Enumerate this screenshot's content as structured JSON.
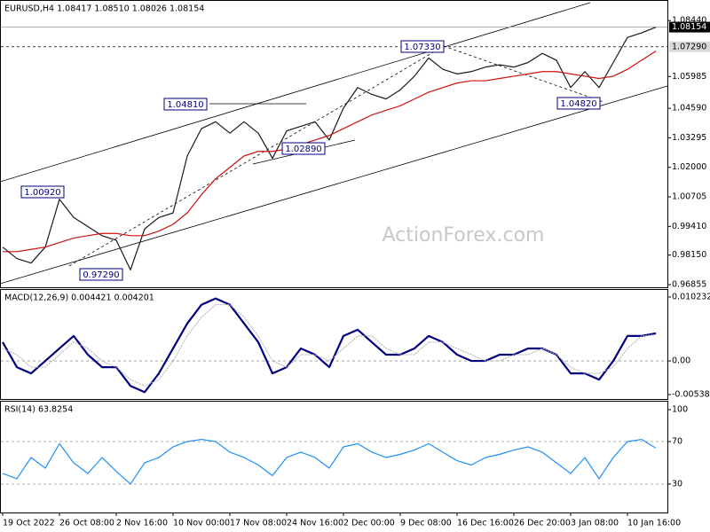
{
  "chart_data": [
    {
      "type": "line",
      "title": "EURUSD,H4  1.08417 1.08510 1.08026 1.08154",
      "watermark": "ActionForex.com",
      "ylim": [
        0.96737,
        1.09304
      ],
      "yticks": [
        {
          "value": 1.0844,
          "label": "1.08440"
        },
        {
          "value": 1.05985,
          "label": "1.05985"
        },
        {
          "value": 1.0459,
          "label": "1.04590"
        },
        {
          "value": 1.03295,
          "label": "1.03295"
        },
        {
          "value": 1.02,
          "label": "1.02000"
        },
        {
          "value": 1.00705,
          "label": "1.00705"
        },
        {
          "value": 0.9941,
          "label": "0.99410"
        },
        {
          "value": 0.9815,
          "label": "0.98150"
        },
        {
          "value": 0.96855,
          "label": "0.96855"
        }
      ],
      "hlines": [
        {
          "value": 1.0729,
          "label": "1.07290"
        },
        {
          "value": 1.08154,
          "label": "1.08154"
        }
      ],
      "annotations": [
        "1.04810",
        "1.02890",
        "1.07330",
        "1.04820",
        "1.00920",
        "0.97290"
      ],
      "series": [
        {
          "color": "#1a1a1a",
          "values": [
            0.985,
            0.98,
            0.978,
            0.985,
            1.006,
            0.998,
            0.994,
            0.99,
            0.988,
            0.975,
            0.993,
            0.998,
            1.0,
            1.025,
            1.037,
            1.04,
            1.035,
            1.04,
            1.035,
            1.024,
            1.036,
            1.038,
            1.04,
            1.032,
            1.046,
            1.055,
            1.052,
            1.05,
            1.054,
            1.06,
            1.068,
            1.063,
            1.061,
            1.062,
            1.064,
            1.065,
            1.064,
            1.066,
            1.07,
            1.067,
            1.055,
            1.062,
            1.055,
            1.066,
            1.077,
            1.079,
            1.0815
          ]
        },
        {
          "color": "#d01010",
          "values": [
            0.983,
            0.983,
            0.984,
            0.985,
            0.987,
            0.989,
            0.99,
            0.991,
            0.991,
            0.99,
            0.99,
            0.992,
            0.995,
            1.0,
            1.008,
            1.015,
            1.02,
            1.025,
            1.027,
            1.027,
            1.028,
            1.03,
            1.032,
            1.034,
            1.037,
            1.04,
            1.043,
            1.045,
            1.047,
            1.05,
            1.053,
            1.055,
            1.057,
            1.058,
            1.058,
            1.059,
            1.06,
            1.061,
            1.062,
            1.062,
            1.061,
            1.06,
            1.059,
            1.06,
            1.063,
            1.067,
            1.071
          ]
        }
      ]
    },
    {
      "type": "line",
      "title": "MACD(12,26,9) 0.004421 0.004201",
      "ylim": [
        -0.0061,
        0.01137
      ],
      "yticks": [
        0.010232,
        {
          "value": 0,
          "label": "0.00"
        },
        -0.005389
      ],
      "level_lines": [
        0
      ],
      "series": [
        {
          "color": "#000080",
          "values": [
            0.003,
            -0.001,
            -0.002,
            0,
            0.002,
            0.004,
            0.001,
            -0.001,
            -0.001,
            -0.004,
            -0.005,
            -0.002,
            0.002,
            0.006,
            0.009,
            0.01,
            0.009,
            0.006,
            0.003,
            -0.002,
            -0.001,
            0.002,
            0.001,
            -0.001,
            0.004,
            0.005,
            0.003,
            0.001,
            0.001,
            0.002,
            0.004,
            0.003,
            0.001,
            0,
            0,
            0.001,
            0.001,
            0.002,
            0.002,
            0.001,
            -0.002,
            -0.002,
            -0.003,
            0,
            0.004,
            0.004,
            0.004421
          ]
        },
        {
          "color": "#b0b0b0",
          "values": [
            0.002,
            0.001,
            -0.001,
            -0.001,
            0.001,
            0.003,
            0.002,
            0,
            -0.001,
            -0.003,
            -0.004,
            -0.003,
            0,
            0.004,
            0.007,
            0.009,
            0.009,
            0.007,
            0.004,
            0,
            -0.001,
            0.001,
            0.001,
            0,
            0.002,
            0.004,
            0.004,
            0.002,
            0.001,
            0.001,
            0.003,
            0.003,
            0.002,
            0.001,
            0,
            0,
            0.001,
            0.001,
            0.002,
            0.001,
            -0.001,
            -0.002,
            -0.002,
            -0.001,
            0.002,
            0.004,
            0.004201
          ]
        }
      ]
    },
    {
      "type": "line",
      "title": "RSI(14) 63.8254",
      "ylim": [
        3.3,
        107.5
      ],
      "yticks": [
        100,
        70,
        30
      ],
      "level_lines": [
        70,
        30
      ],
      "categories": [
        "19 Oct 2022",
        null,
        null,
        null,
        "26 Oct 08:00",
        null,
        null,
        null,
        "2 Nov 16:00",
        null,
        null,
        null,
        "10 Nov 00:00",
        null,
        null,
        null,
        "17 Nov 08:00",
        null,
        null,
        null,
        "24 Nov 16:00",
        null,
        null,
        null,
        "2 Dec 00:00",
        null,
        null,
        null,
        "9 Dec 08:00",
        null,
        null,
        null,
        "16 Dec 16:00",
        null,
        null,
        null,
        "26 Dec 20:00",
        null,
        null,
        null,
        "3 Jan 08:00",
        null,
        null,
        null,
        "10 Jan 16:00",
        null,
        null
      ],
      "series": [
        {
          "color": "#1e90ff",
          "values": [
            40,
            35,
            55,
            45,
            68,
            50,
            40,
            55,
            42,
            30,
            50,
            55,
            65,
            70,
            72,
            70,
            60,
            55,
            48,
            38,
            55,
            60,
            55,
            45,
            65,
            68,
            60,
            55,
            58,
            62,
            68,
            60,
            52,
            48,
            55,
            58,
            62,
            65,
            60,
            50,
            40,
            55,
            35,
            55,
            70,
            72,
            63.8254
          ]
        }
      ]
    }
  ]
}
